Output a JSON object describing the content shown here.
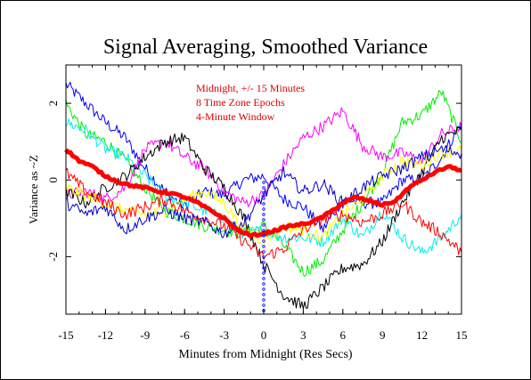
{
  "chart_data": {
    "type": "line",
    "title": "Signal Averaging, Smoothed Variance",
    "xlabel": "Minutes from Midnight (Res Secs)",
    "ylabel": "Variance as ~Z",
    "annotations": [
      "Midnight, +/- 15 Minutes",
      "8 Time Zone Epochs",
      "4-Minute Window"
    ],
    "annotation_color": "#e00000",
    "xlim": [
      -15,
      15
    ],
    "ylim": [
      -3.5,
      3
    ],
    "x_ticks": [
      -15,
      -12,
      -9,
      -6,
      -3,
      0,
      3,
      6,
      9,
      12,
      15
    ],
    "y_ticks": [
      -2,
      0,
      2
    ],
    "grid": false,
    "midnight_marker_x": 0,
    "series": [
      {
        "color": "#0000ff",
        "width": 1,
        "x": [
          -15,
          -13.5,
          -12,
          -10.5,
          -9,
          -7.5,
          -6,
          -4.5,
          -3,
          -1.5,
          0,
          1.5,
          3,
          4.5,
          6,
          7.5,
          9,
          10.5,
          12,
          13.5,
          15
        ],
        "values": [
          2.5,
          2.0,
          1.5,
          1.1,
          0.3,
          -0.3,
          -0.7,
          -0.3,
          -0.4,
          0.0,
          0.1,
          -0.5,
          -0.7,
          -1.3,
          -0.5,
          -0.6,
          -0.6,
          0.0,
          0.0,
          0.6,
          1.5
        ]
      },
      {
        "color": "#00ee00",
        "width": 1,
        "x": [
          -15,
          -13.5,
          -12,
          -10.5,
          -9,
          -7.5,
          -6,
          -4.5,
          -3,
          -1.5,
          0,
          1.5,
          3,
          4.5,
          6,
          7.5,
          9,
          10.5,
          12,
          13.5,
          15
        ],
        "values": [
          2.0,
          1.2,
          1.0,
          0.5,
          -0.2,
          -0.8,
          -1.0,
          -1.2,
          -1.3,
          -1.4,
          -1.2,
          -1.7,
          -2.4,
          -2.1,
          -1.3,
          -0.6,
          0.2,
          1.5,
          1.7,
          2.3,
          1.0
        ]
      },
      {
        "color": "#00eeee",
        "width": 1,
        "x": [
          -15,
          -13.5,
          -12,
          -10.5,
          -9,
          -7.5,
          -6,
          -4.5,
          -3,
          -1.5,
          0,
          1.5,
          3,
          4.5,
          6,
          7.5,
          9,
          10.5,
          12,
          13.5,
          15
        ],
        "values": [
          1.5,
          1.3,
          0.8,
          0.6,
          0.1,
          -0.4,
          -0.6,
          -0.8,
          -1.0,
          -1.4,
          -1.3,
          -1.5,
          -1.5,
          -1.6,
          -1.0,
          -1.5,
          -0.8,
          -1.5,
          -1.9,
          -1.5,
          -0.9
        ]
      },
      {
        "color": "#ff00ff",
        "width": 1,
        "x": [
          -15,
          -13.5,
          -12,
          -10.5,
          -9,
          -7.5,
          -6,
          -4.5,
          -3,
          -1.5,
          0,
          1.5,
          3,
          4.5,
          6,
          7.5,
          9,
          10.5,
          12,
          13.5,
          15
        ],
        "values": [
          -0.4,
          -0.3,
          -0.5,
          -0.2,
          0.8,
          1.0,
          0.6,
          0.3,
          -0.3,
          -0.6,
          -0.4,
          0.4,
          1.1,
          1.4,
          1.8,
          0.9,
          0.6,
          0.7,
          0.5,
          1.2,
          1.4
        ]
      },
      {
        "color": "#000000",
        "width": 1,
        "x": [
          -15,
          -13.5,
          -12,
          -10.5,
          -9,
          -7.5,
          -6,
          -4.5,
          -3,
          -1.5,
          0,
          1.5,
          3,
          4.5,
          6,
          7.5,
          9,
          10.5,
          12,
          13.5,
          15
        ],
        "values": [
          -0.3,
          -0.6,
          -0.2,
          0.1,
          0.6,
          1.0,
          1.1,
          0.3,
          -0.2,
          -1.0,
          -2.2,
          -3.0,
          -3.3,
          -2.8,
          -2.3,
          -2.2,
          -1.6,
          -0.6,
          0.2,
          1.1,
          1.3
        ]
      },
      {
        "color": "#ffff00",
        "width": 1,
        "x": [
          -15,
          -13.5,
          -12,
          -10.5,
          -9,
          -7.5,
          -6,
          -4.5,
          -3,
          -1.5,
          0,
          1.5,
          3,
          4.5,
          6,
          7.5,
          9,
          10.5,
          12,
          13.5,
          15
        ],
        "values": [
          -0.2,
          -0.4,
          -0.6,
          -0.8,
          -0.9,
          -0.8,
          -0.5,
          -0.3,
          -0.6,
          -1.3,
          -1.6,
          -1.2,
          -1.3,
          -1.5,
          -0.9,
          -0.5,
          0.1,
          0.5,
          0.4,
          0.7,
          0.8
        ]
      },
      {
        "color": "#ff0000",
        "width": 1,
        "x": [
          -15,
          -13.5,
          -12,
          -10.5,
          -9,
          -7.5,
          -6,
          -4.5,
          -3,
          -1.5,
          0,
          1.5,
          3,
          4.5,
          6,
          7.5,
          9,
          10.5,
          12,
          13.5,
          15
        ],
        "values": [
          0.2,
          -0.3,
          -0.6,
          -0.9,
          -0.7,
          -0.5,
          -0.8,
          -1.0,
          -1.2,
          -1.6,
          -2.0,
          -1.8,
          -1.3,
          -1.0,
          -0.9,
          -1.1,
          -0.9,
          -0.6,
          -1.1,
          -1.4,
          -1.9
        ]
      },
      {
        "color": "#0000cc",
        "width": 1,
        "x": [
          -15,
          -13.5,
          -12,
          -10.5,
          -9,
          -7.5,
          -6,
          -4.5,
          -3,
          -1.5,
          0,
          1.5,
          3,
          4.5,
          6,
          7.5,
          9,
          10.5,
          12,
          13.5,
          15
        ],
        "values": [
          -0.6,
          -0.9,
          -0.7,
          -1.3,
          -1.0,
          -0.8,
          -1.0,
          -1.1,
          -1.4,
          -1.1,
          -0.4,
          0.2,
          -0.3,
          -0.1,
          -0.6,
          -0.2,
          0.1,
          0.3,
          0.6,
          0.8,
          0.7
        ]
      },
      {
        "color": "#ff0000",
        "width": 5,
        "x": [
          -15,
          -14,
          -13,
          -12,
          -11,
          -10,
          -9,
          -8,
          -7,
          -6,
          -5,
          -4,
          -3,
          -2,
          -1,
          0,
          1,
          2,
          3,
          4,
          5,
          6,
          7,
          8,
          9,
          10,
          11,
          12,
          13,
          14,
          15
        ],
        "values": [
          0.8,
          0.5,
          0.35,
          0.1,
          -0.05,
          -0.15,
          -0.2,
          -0.3,
          -0.35,
          -0.45,
          -0.6,
          -0.8,
          -1.0,
          -1.3,
          -1.45,
          -1.4,
          -1.3,
          -1.2,
          -1.15,
          -1.05,
          -0.85,
          -0.6,
          -0.45,
          -0.55,
          -0.65,
          -0.55,
          -0.2,
          0.0,
          0.2,
          0.35,
          0.25
        ]
      }
    ]
  }
}
